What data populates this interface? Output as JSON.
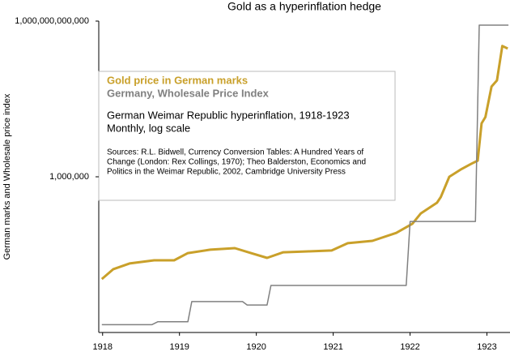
{
  "chart_data": {
    "type": "line",
    "title": "Gold as a hyperinflation hedge",
    "y_label": "German marks and Wholesale price index",
    "log_scale_y": true,
    "xlim": [
      1917.95,
      1923.3
    ],
    "xticks": [
      1918,
      1919,
      1920,
      1921,
      1922,
      1923
    ],
    "ylim": [
      1,
      1000000000000
    ],
    "yticks": [
      {
        "value": 1000000,
        "label": "1,000,000"
      },
      {
        "value": 1000000000000,
        "label": "1,000,000,000,000"
      }
    ],
    "legend_position": "upper left",
    "annotations": [
      "German Weimar Republic hyperinflation, 1918-1923",
      "Monthly, log scale",
      "Sources: R.L. Bidwell, Currency Conversion Tables: A Hundred Years of",
      "Change (London: Rex Collings, 1970); Theo Balderston, Economics and",
      "Politics in the Weimar Republic, 2002, Cambridge University Press"
    ],
    "series": [
      {
        "name": "Gold price in German marks",
        "color": "#c9a02a",
        "x": [
          1917.99,
          1918.14,
          1918.35,
          1918.67,
          1918.93,
          1919.11,
          1919.4,
          1919.72,
          1919.93,
          1920.14,
          1920.35,
          1920.67,
          1920.98,
          1921.19,
          1921.51,
          1921.82,
          1922.03,
          1922.14,
          1922.35,
          1922.4,
          1922.51,
          1922.67,
          1922.8,
          1922.88,
          1922.93,
          1922.98,
          1923.06,
          1923.13,
          1923.2,
          1923.27
        ],
        "values": [
          115,
          275,
          457,
          603,
          603,
          1150,
          1550,
          1780,
          1150,
          750,
          1230,
          1330,
          1440,
          2750,
          3390,
          6900,
          15500,
          39000,
          100000,
          166000,
          1000000,
          2000000,
          3200000,
          4200000,
          115000000,
          200000000,
          3000000000,
          5200000000,
          110000000000,
          87000000000
        ]
      },
      {
        "name": "Germany, Wholesale Price Index",
        "color": "#808080",
        "x": [
          1917.99,
          1918.64,
          1918.72,
          1919.11,
          1919.16,
          1919.82,
          1919.88,
          1920.14,
          1920.19,
          1921.95,
          1922.0,
          1922.85,
          1922.9,
          1923.28
        ],
        "values": [
          2,
          2,
          2.6,
          2.6,
          15.5,
          15.5,
          11.5,
          11.5,
          65,
          65,
          19000,
          19000,
          700000000000,
          700000000000
        ]
      }
    ]
  }
}
